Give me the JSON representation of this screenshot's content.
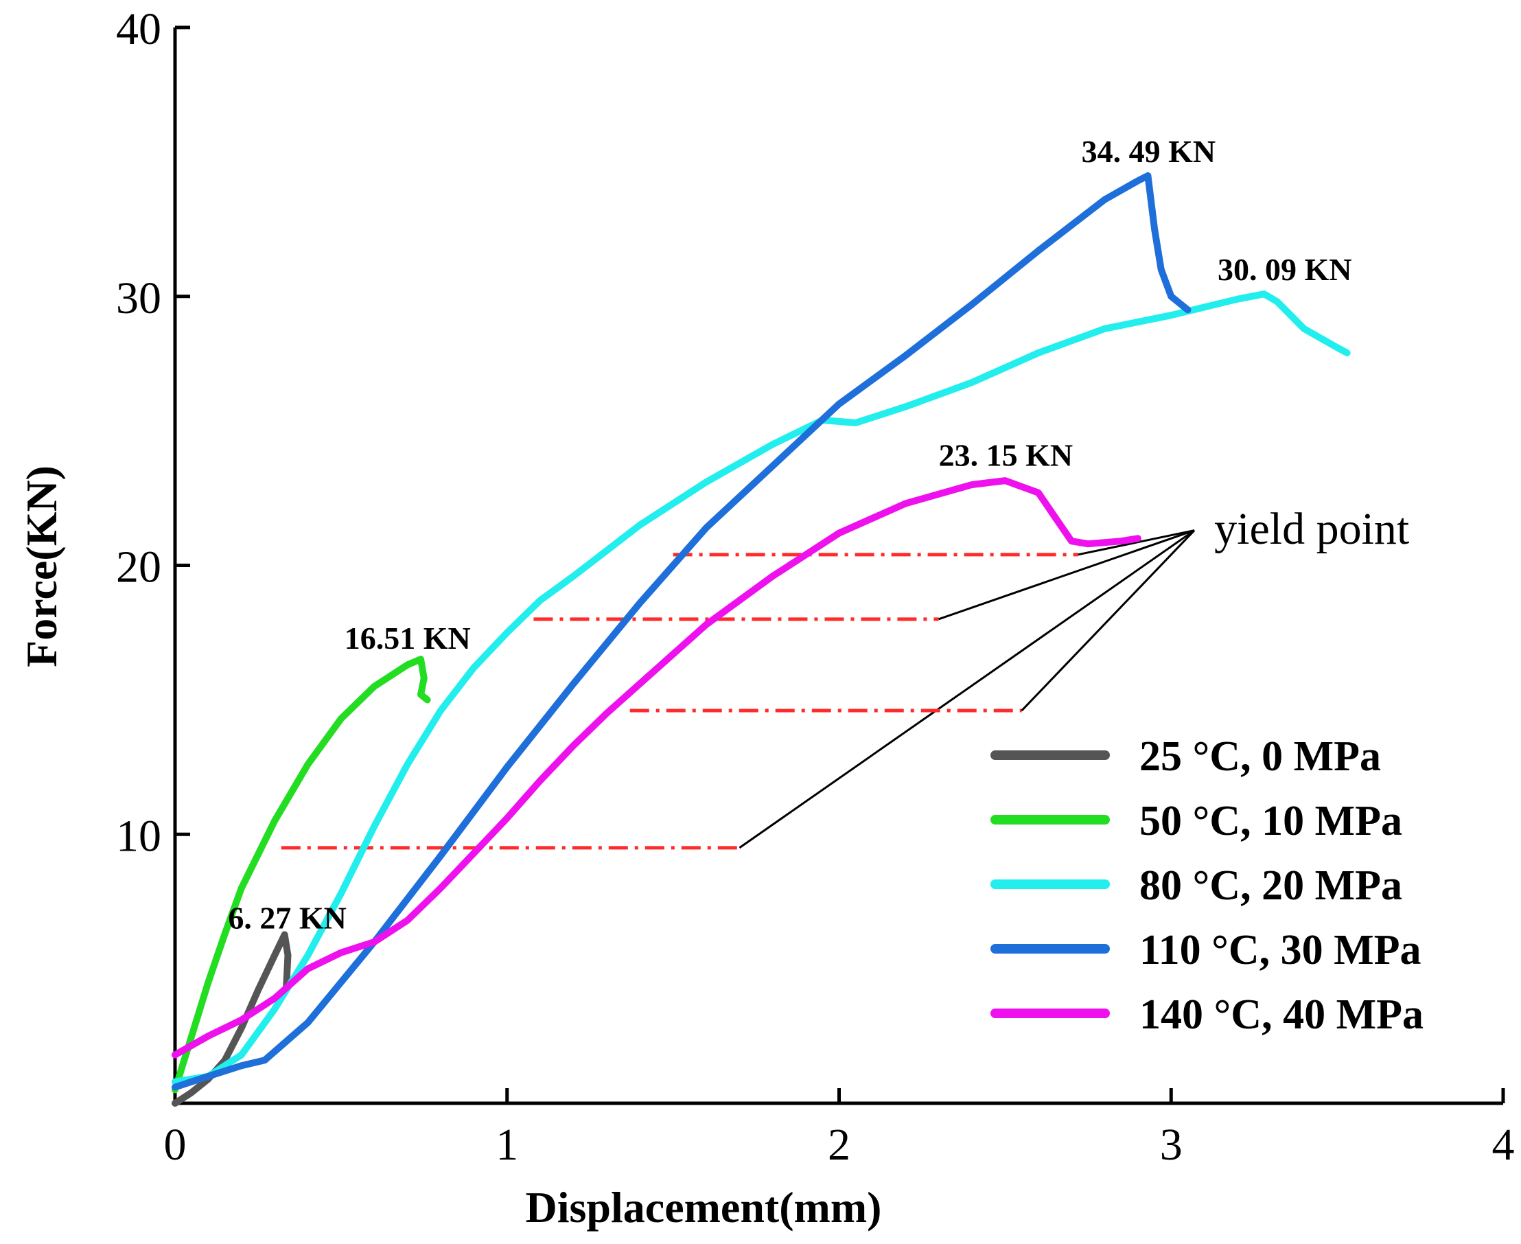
{
  "chart_data": {
    "type": "line",
    "xlabel": "Displacement(mm)",
    "ylabel": "Force(KN)",
    "xlim": [
      0,
      4
    ],
    "ylim": [
      0,
      40
    ],
    "xticks": [
      0,
      1,
      2,
      3,
      4
    ],
    "xtick_labels": [
      "0",
      "1",
      "2",
      "3",
      "4"
    ],
    "yticks": [
      10,
      20,
      30,
      40
    ],
    "ytick_labels": [
      "10",
      "20",
      "30",
      "40"
    ],
    "grid": false,
    "legend_position": "bottom-right",
    "series": [
      {
        "name": "25 °C, 0 MPa",
        "color": "#555555",
        "x": [
          0.0,
          0.05,
          0.1,
          0.15,
          0.2,
          0.25,
          0.3,
          0.33,
          0.34,
          0.335
        ],
        "y": [
          0.0,
          0.4,
          0.9,
          1.6,
          2.8,
          4.2,
          5.5,
          6.27,
          5.5,
          4.3
        ]
      },
      {
        "name": "50 °C, 10 MPa",
        "color": "#22dd22",
        "x": [
          0.0,
          0.05,
          0.1,
          0.15,
          0.2,
          0.3,
          0.4,
          0.5,
          0.6,
          0.7,
          0.74,
          0.75,
          0.74,
          0.76
        ],
        "y": [
          0.5,
          2.5,
          4.5,
          6.3,
          8.0,
          10.5,
          12.6,
          14.3,
          15.5,
          16.3,
          16.51,
          15.8,
          15.2,
          15.0
        ]
      },
      {
        "name": "80 °C, 20 MPa",
        "color": "#22eeee",
        "x": [
          0.0,
          0.1,
          0.2,
          0.3,
          0.4,
          0.5,
          0.6,
          0.7,
          0.8,
          0.9,
          1.0,
          1.1,
          1.2,
          1.4,
          1.6,
          1.8,
          1.95,
          2.05,
          2.2,
          2.4,
          2.6,
          2.8,
          3.0,
          3.2,
          3.28,
          3.32,
          3.4,
          3.5,
          3.53
        ],
        "y": [
          0.8,
          1.0,
          1.8,
          3.5,
          5.5,
          7.8,
          10.3,
          12.6,
          14.6,
          16.2,
          17.5,
          18.7,
          19.6,
          21.5,
          23.1,
          24.5,
          25.4,
          25.3,
          25.9,
          26.8,
          27.9,
          28.8,
          29.3,
          29.9,
          30.09,
          29.8,
          28.8,
          28.1,
          27.9
        ]
      },
      {
        "name": "110 °C, 30 MPa",
        "color": "#1e6fd9",
        "x": [
          0.0,
          0.1,
          0.2,
          0.27,
          0.4,
          0.6,
          0.8,
          1.0,
          1.2,
          1.4,
          1.6,
          1.8,
          2.0,
          2.2,
          2.4,
          2.6,
          2.8,
          2.9,
          2.93,
          2.95,
          2.97,
          3.0,
          3.05
        ],
        "y": [
          0.6,
          1.0,
          1.4,
          1.6,
          3.0,
          6.0,
          9.2,
          12.5,
          15.6,
          18.6,
          21.4,
          23.7,
          26.0,
          27.8,
          29.7,
          31.7,
          33.6,
          34.3,
          34.49,
          32.5,
          31.0,
          30.0,
          29.5
        ]
      },
      {
        "name": "140 °C, 40 MPa",
        "color": "#ee11ee",
        "x": [
          0.0,
          0.1,
          0.2,
          0.3,
          0.4,
          0.5,
          0.6,
          0.7,
          0.8,
          0.9,
          1.0,
          1.1,
          1.2,
          1.3,
          1.4,
          1.6,
          1.8,
          2.0,
          2.2,
          2.4,
          2.5,
          2.6,
          2.65,
          2.7,
          2.75,
          2.85,
          2.9
        ],
        "y": [
          1.8,
          2.5,
          3.1,
          3.9,
          5.0,
          5.6,
          6.0,
          6.8,
          8.0,
          9.3,
          10.6,
          12.0,
          13.3,
          14.5,
          15.6,
          17.8,
          19.6,
          21.2,
          22.3,
          23.0,
          23.15,
          22.7,
          21.8,
          20.9,
          20.8,
          20.9,
          21.0
        ]
      }
    ],
    "annotations": {
      "peak_labels": [
        {
          "text": "6. 27 KN",
          "x": 0.16,
          "y": 6.5
        },
        {
          "text": "16.51 KN",
          "x": 0.51,
          "y": 16.9
        },
        {
          "text": "23. 15 KN",
          "x": 2.3,
          "y": 23.7
        },
        {
          "text": "34. 49 KN",
          "x": 2.73,
          "y": 35.0
        },
        {
          "text": "30. 09 KN",
          "x": 3.14,
          "y": 30.6
        }
      ],
      "yield_label": {
        "text": "yield point",
        "x": 3.13,
        "y": 20.8
      },
      "yield_lines": [
        {
          "x1": 0.32,
          "x2": 1.7,
          "y": 9.5
        },
        {
          "x1": 1.08,
          "x2": 2.3,
          "y": 18.0
        },
        {
          "x1": 1.37,
          "x2": 2.55,
          "y": 14.6
        },
        {
          "x1": 1.5,
          "x2": 2.72,
          "y": 20.4
        }
      ],
      "yield_convergence": {
        "x": 3.07,
        "y": 21.3
      }
    }
  }
}
